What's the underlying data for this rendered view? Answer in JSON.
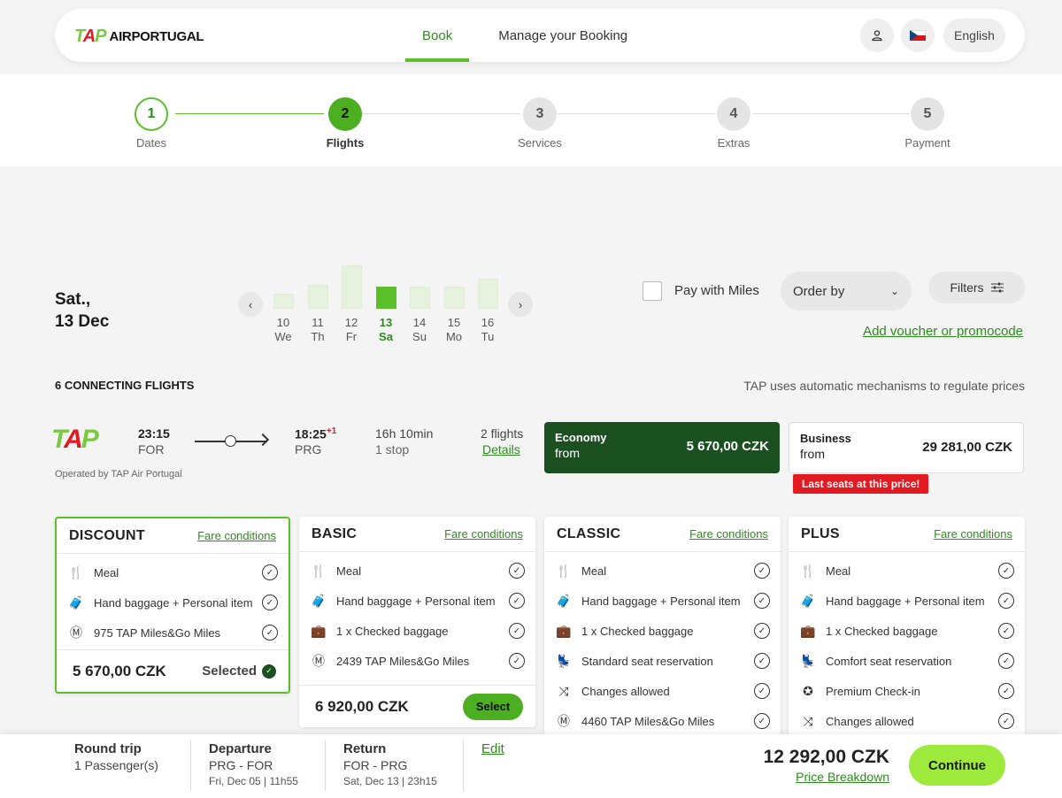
{
  "header": {
    "logo_tap": "TAP",
    "logo_text_bold": "AIR",
    "logo_text": "PORTUGAL",
    "nav": [
      {
        "label": "Book",
        "active": true
      },
      {
        "label": "Manage your Booking",
        "active": false
      }
    ],
    "language": "English",
    "user_icon": "user-icon",
    "flag_icon": "czech-flag-icon"
  },
  "stepper": {
    "steps": [
      {
        "num": "1",
        "label": "Dates",
        "state": "done"
      },
      {
        "num": "2",
        "label": "Flights",
        "state": "active"
      },
      {
        "num": "3",
        "label": "Services",
        "state": "todo"
      },
      {
        "num": "4",
        "label": "Extras",
        "state": "todo"
      },
      {
        "num": "5",
        "label": "Payment",
        "state": "todo"
      }
    ]
  },
  "date_picker": {
    "title_line1": "Sat.,",
    "title_line2": "13 Dec",
    "prev_icon": "chevron-left-icon",
    "next_icon": "chevron-right-icon",
    "days": [
      {
        "num": "10",
        "wd": "We",
        "level": 0.35
      },
      {
        "num": "11",
        "wd": "Th",
        "level": 0.55
      },
      {
        "num": "12",
        "wd": "Fr",
        "level": 1.0
      },
      {
        "num": "13",
        "wd": "Sa",
        "level": 0.5,
        "active": true
      },
      {
        "num": "14",
        "wd": "Su",
        "level": 0.5
      },
      {
        "num": "15",
        "wd": "Mo",
        "level": 0.5
      },
      {
        "num": "16",
        "wd": "Tu",
        "level": 0.7
      }
    ]
  },
  "controls": {
    "pay_with_miles": "Pay with Miles",
    "order_by": "Order by",
    "filters": "Filters",
    "voucher": "Add voucher or promocode"
  },
  "results": {
    "count_label": "6 CONNECTING FLIGHTS",
    "price_note": "TAP uses automatic mechanisms to regulate prices"
  },
  "flight": {
    "carrier": "TAP",
    "operated_by": "Operated by TAP Air Portugal",
    "dep_time": "23:15",
    "dep_code": "FOR",
    "arr_time": "18:25",
    "arr_plus": "+1",
    "arr_code": "PRG",
    "duration": "16h 10min",
    "stops": "1 stop",
    "flights": "2 flights",
    "details": "Details",
    "economy": {
      "name": "Economy",
      "from": "from",
      "price": "5 670,00 CZK"
    },
    "business": {
      "name": "Business",
      "from": "from",
      "price": "29 281,00 CZK"
    },
    "last_seats": "Last seats at this price!"
  },
  "fare_cards": [
    {
      "title": "DISCOUNT",
      "link": "Fare conditions",
      "features": [
        {
          "icon": "meal-icon",
          "glyph": "🍴",
          "text": "Meal"
        },
        {
          "icon": "hand-baggage-icon",
          "glyph": "🧳",
          "text": "Hand baggage + Personal item"
        },
        {
          "icon": "miles-icon",
          "glyph": "Ⓜ",
          "text": "975 TAP Miles&Go Miles"
        }
      ],
      "price": "5 670,00 CZK",
      "action": "Selected",
      "selected": true
    },
    {
      "title": "BASIC",
      "link": "Fare conditions",
      "features": [
        {
          "icon": "meal-icon",
          "glyph": "🍴",
          "text": "Meal"
        },
        {
          "icon": "hand-baggage-icon",
          "glyph": "🧳",
          "text": "Hand baggage + Personal item"
        },
        {
          "icon": "checked-baggage-icon",
          "glyph": "💼",
          "text": "1 x Checked baggage"
        },
        {
          "icon": "miles-icon",
          "glyph": "Ⓜ",
          "text": "2439 TAP Miles&Go Miles"
        }
      ],
      "price": "6 920,00 CZK",
      "action": "Select",
      "selected": false
    },
    {
      "title": "CLASSIC",
      "link": "Fare conditions",
      "features": [
        {
          "icon": "meal-icon",
          "glyph": "🍴",
          "text": "Meal"
        },
        {
          "icon": "hand-baggage-icon",
          "glyph": "🧳",
          "text": "Hand baggage + Personal item"
        },
        {
          "icon": "checked-baggage-icon",
          "glyph": "💼",
          "text": "1 x Checked baggage"
        },
        {
          "icon": "seat-icon",
          "glyph": "💺",
          "text": "Standard seat reservation"
        },
        {
          "icon": "changes-icon",
          "glyph": "⤨",
          "text": "Changes allowed"
        },
        {
          "icon": "miles-icon",
          "glyph": "Ⓜ",
          "text": "4460 TAP Miles&Go Miles"
        }
      ]
    },
    {
      "title": "PLUS",
      "link": "Fare conditions",
      "features": [
        {
          "icon": "meal-icon",
          "glyph": "🍴",
          "text": "Meal"
        },
        {
          "icon": "hand-baggage-icon",
          "glyph": "🧳",
          "text": "Hand baggage + Personal item"
        },
        {
          "icon": "checked-baggage-icon",
          "glyph": "💼",
          "text": "1 x Checked baggage"
        },
        {
          "icon": "comfort-seat-icon",
          "glyph": "💺",
          "text": "Comfort seat reservation"
        },
        {
          "icon": "premium-checkin-icon",
          "glyph": "✪",
          "text": "Premium Check-in"
        },
        {
          "icon": "changes-icon",
          "glyph": "⤨",
          "text": "Changes allowed"
        }
      ]
    }
  ],
  "footer": {
    "trip_type": "Round trip",
    "passengers": "1 Passenger(s)",
    "departure_title": "Departure",
    "departure_route": "PRG - FOR",
    "departure_time": "Fri, Dec 05 | 11h55",
    "return_title": "Return",
    "return_route": "FOR - PRG",
    "return_time": "Sat, Dec 13 | 23h15",
    "edit": "Edit",
    "total": "12 292,00 CZK",
    "breakdown": "Price Breakdown",
    "continue": "Continue"
  }
}
